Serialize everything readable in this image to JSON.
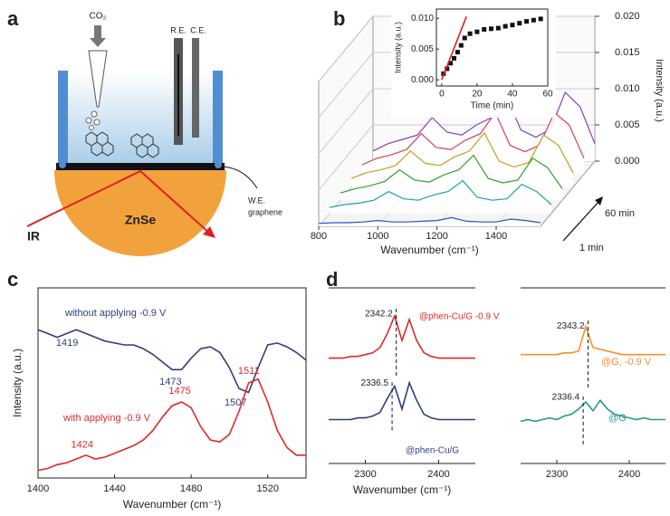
{
  "panel_labels": [
    "a",
    "b",
    "c",
    "d"
  ],
  "diagram": {
    "gas": "CO₂",
    "reference_electrode": "R.E.",
    "counter_electrode": "C.E.",
    "working_electrode": [
      "W.E.",
      "graphene"
    ],
    "beam": "IR",
    "crystal": "ZnSe"
  },
  "chart_data": [
    {
      "type": "waterfall",
      "x": [
        800,
        850,
        900,
        950,
        1000,
        1050,
        1100,
        1150,
        1200,
        1250,
        1300,
        1350,
        1400,
        1450,
        1500,
        1550
      ],
      "series": [
        {
          "color": "#3050c0",
          "values": [
            0.0004,
            0.0005,
            0.0005,
            0.0006,
            0.0008,
            0.0006,
            0.0006,
            0.0007,
            0.0008,
            0.0012,
            0.0007,
            0.0006,
            0.0006,
            0.001,
            0.0008,
            0.0005
          ]
        },
        {
          "color": "#20a0a0",
          "values": [
            0.0008,
            0.0012,
            0.0014,
            0.0018,
            0.003,
            0.002,
            0.0018,
            0.0025,
            0.003,
            0.0045,
            0.0022,
            0.0018,
            0.002,
            0.004,
            0.003,
            0.0012
          ]
        },
        {
          "color": "#30a030",
          "values": [
            0.001,
            0.0016,
            0.002,
            0.0026,
            0.0042,
            0.0028,
            0.0025,
            0.0035,
            0.0042,
            0.0062,
            0.003,
            0.0024,
            0.0028,
            0.0058,
            0.0045,
            0.0016
          ]
        },
        {
          "color": "#c0a020",
          "values": [
            0.0012,
            0.002,
            0.0024,
            0.003,
            0.005,
            0.0033,
            0.003,
            0.0042,
            0.005,
            0.0075,
            0.0036,
            0.0028,
            0.0034,
            0.0072,
            0.0058,
            0.002
          ]
        },
        {
          "color": "#d04060",
          "values": [
            0.0013,
            0.0022,
            0.0027,
            0.0034,
            0.0056,
            0.0037,
            0.0034,
            0.0047,
            0.0056,
            0.0085,
            0.004,
            0.0031,
            0.004,
            0.0085,
            0.0068,
            0.0022
          ]
        },
        {
          "color": "#8040c0",
          "values": [
            0.0014,
            0.0024,
            0.003,
            0.0036,
            0.006,
            0.004,
            0.0036,
            0.005,
            0.006,
            0.009,
            0.0043,
            0.0033,
            0.0044,
            0.0095,
            0.0075,
            0.0024
          ]
        }
      ],
      "xlim": [
        800,
        1550
      ],
      "xticks": [
        800,
        1000,
        1200,
        1400
      ],
      "x_label": "Wavenumber (cm⁻¹)",
      "ylim": [
        0,
        0.02
      ],
      "yticks": [
        {
          "value": 0,
          "label": "0.000"
        },
        {
          "value": 0.005,
          "label": "0.005"
        },
        {
          "value": 0.01,
          "label": "0.010"
        },
        {
          "value": 0.015,
          "label": "0.015"
        },
        {
          "value": 0.02,
          "label": "0.020"
        }
      ],
      "y_label": "Intensity (a.u.)",
      "depth_labels": [
        "1 min",
        "60 min"
      ]
    },
    {
      "type": "scatter",
      "x": [
        1,
        3,
        5,
        7,
        9,
        11,
        13,
        16,
        20,
        24,
        28,
        32,
        36,
        40,
        44,
        48,
        52,
        56
      ],
      "values": [
        0.001,
        0.0018,
        0.0027,
        0.0035,
        0.0045,
        0.0056,
        0.0068,
        0.0075,
        0.0078,
        0.0082,
        0.0083,
        0.0084,
        0.0087,
        0.0089,
        0.0092,
        0.0095,
        0.0097,
        0.0099
      ],
      "color": "#111111",
      "fit": {
        "x": [
          0,
          14
        ],
        "values": [
          0,
          0.0103
        ],
        "color": "#e02020"
      },
      "xlim": [
        -3,
        60
      ],
      "xticks": [
        0,
        20,
        40,
        60
      ],
      "x_label": "Time (min)",
      "ylim": [
        -0.001,
        0.0115
      ],
      "yticks": [
        {
          "value": 0,
          "label": "0.000"
        },
        {
          "value": 0.005,
          "label": "0.005"
        },
        {
          "value": 0.01,
          "label": "0.010"
        }
      ],
      "y_label": "Intensity (a.u.)"
    },
    {
      "type": "line",
      "x": [
        1400,
        1405,
        1410,
        1415,
        1420,
        1425,
        1430,
        1435,
        1440,
        1445,
        1450,
        1455,
        1460,
        1465,
        1470,
        1475,
        1480,
        1485,
        1490,
        1495,
        1500,
        1505,
        1510,
        1515,
        1520,
        1525,
        1530,
        1535,
        1540
      ],
      "series": [
        {
          "name": "without applying -0.9 V",
          "color": "#2e3f7a",
          "peaks": [
            1419,
            1473,
            1507
          ],
          "values": [
            78,
            76,
            74,
            76,
            78,
            76,
            74,
            72,
            71,
            70,
            70,
            68,
            65,
            61,
            57,
            57,
            63,
            68,
            69,
            66,
            58,
            47,
            45,
            58,
            70,
            71,
            69,
            66,
            62
          ]
        },
        {
          "name": "with applying -0.9 V",
          "color": "#e02828",
          "peaks": [
            1424,
            1475,
            1511
          ],
          "values": [
            4,
            5,
            7,
            8,
            10,
            12,
            10,
            11,
            13,
            15,
            17,
            20,
            25,
            32,
            38,
            40,
            37,
            27,
            20,
            19,
            23,
            35,
            50,
            52,
            40,
            25,
            16,
            12,
            12
          ]
        }
      ],
      "xlim": [
        1400,
        1540
      ],
      "xticks": [
        1400,
        1440,
        1480,
        1520
      ],
      "x_label": "Wavenumber (cm⁻¹)",
      "ylim": [
        0,
        100
      ],
      "y_label": "Intensity (a.u.)"
    },
    {
      "type": "line",
      "x": [
        2250,
        2260,
        2270,
        2280,
        2290,
        2300,
        2310,
        2320,
        2330,
        2340,
        2350,
        2360,
        2370,
        2380,
        2390,
        2400,
        2410,
        2420,
        2430,
        2440,
        2450
      ],
      "series": [
        {
          "name": "@phen-Cu/G -0.9 V",
          "color": "#e02828",
          "values": [
            60,
            60,
            60,
            61,
            61,
            62,
            63,
            66,
            74,
            84,
            70,
            82,
            70,
            63,
            61,
            60,
            60,
            60,
            60,
            60,
            60
          ]
        },
        {
          "name": "@phen-Cu/G",
          "color": "#2e3f7a",
          "values": [
            25,
            25,
            25,
            25,
            26,
            26,
            27,
            29,
            37,
            44,
            31,
            46,
            36,
            28,
            26,
            25,
            25,
            25,
            25,
            25,
            25
          ]
        }
      ],
      "markers": [
        2342.2,
        2336.5
      ],
      "xlim": [
        2250,
        2450
      ],
      "xticks": [
        2300,
        2400
      ],
      "x_label": "Wavenumber (cm⁻¹)",
      "ylim": [
        0,
        100
      ]
    },
    {
      "type": "line",
      "x": [
        2250,
        2260,
        2270,
        2280,
        2290,
        2300,
        2310,
        2320,
        2330,
        2340,
        2350,
        2360,
        2370,
        2380,
        2390,
        2400,
        2410,
        2420,
        2430,
        2440,
        2450
      ],
      "series": [
        {
          "name": "@G, -0.9 V",
          "color": "#f0922a",
          "values": [
            62,
            62,
            62,
            62,
            62,
            62,
            63,
            63,
            64,
            78,
            66,
            65,
            64,
            63,
            62,
            62,
            62,
            62,
            62,
            62,
            62
          ]
        },
        {
          "name": "@G",
          "color": "#2a9a88",
          "values": [
            24,
            25,
            24,
            25,
            26,
            25,
            27,
            28,
            31,
            35,
            30,
            36,
            31,
            28,
            27,
            26,
            25,
            26,
            25,
            25,
            25
          ]
        }
      ],
      "markers": [
        2343.2,
        2336.4
      ],
      "xlim": [
        2250,
        2450
      ],
      "xticks": [
        2300,
        2400
      ],
      "ylim": [
        0,
        100
      ]
    }
  ]
}
